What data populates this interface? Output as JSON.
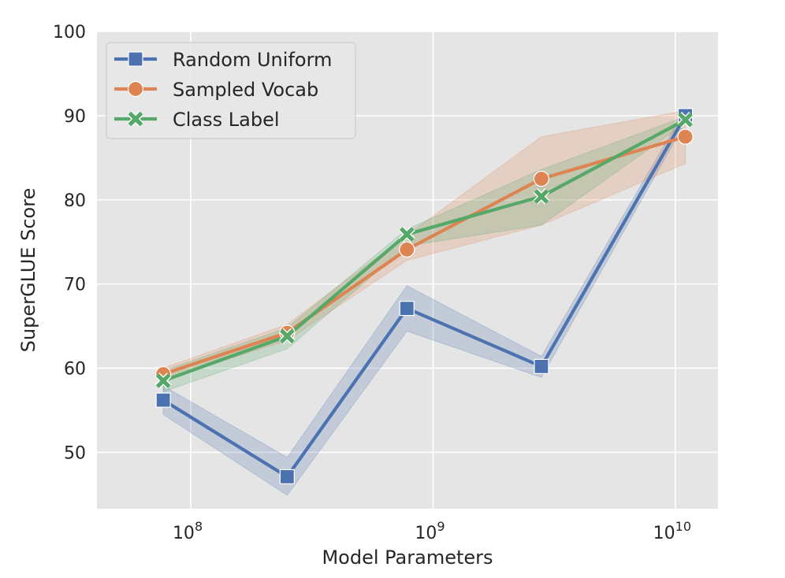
{
  "chart_data": {
    "type": "line",
    "title": "",
    "xlabel": "Model Parameters",
    "ylabel": "SuperGLUE Score",
    "x_scale": "log",
    "x": [
      77000000,
      250000000,
      780000000,
      2800000000,
      11000000000
    ],
    "xlim": [
      41000000,
      15000000000
    ],
    "ylim": [
      43.3,
      100
    ],
    "x_ticks": [
      {
        "value": 100000000,
        "base": "10",
        "exp": "8"
      },
      {
        "value": 1000000000,
        "base": "10",
        "exp": "9"
      },
      {
        "value": 10000000000,
        "base": "10",
        "exp": "10"
      }
    ],
    "y_ticks": [
      50,
      60,
      70,
      80,
      90,
      100
    ],
    "grid": true,
    "legend_position": "top-left",
    "series": [
      {
        "name": "Random Uniform",
        "color": "#4c72b0",
        "marker": "square",
        "values": [
          56.2,
          47.1,
          67.1,
          60.2,
          90.0
        ],
        "lower": [
          54.5,
          44.9,
          64.4,
          58.9,
          89.2
        ],
        "upper": [
          57.9,
          49.4,
          69.8,
          61.4,
          90.8
        ]
      },
      {
        "name": "Sampled Vocab",
        "color": "#dd8452",
        "marker": "circle",
        "values": [
          59.3,
          64.2,
          74.1,
          82.5,
          87.5
        ],
        "lower": [
          58.6,
          63.3,
          72.8,
          77.0,
          84.3
        ],
        "upper": [
          60.0,
          65.2,
          75.8,
          87.5,
          90.6
        ]
      },
      {
        "name": "Class Label",
        "color": "#55a868",
        "marker": "x",
        "values": [
          58.5,
          63.8,
          75.9,
          80.4,
          89.5
        ],
        "lower": [
          57.2,
          62.3,
          74.5,
          77.0,
          89.1
        ],
        "upper": [
          59.7,
          64.8,
          76.5,
          83.6,
          89.9
        ]
      }
    ]
  }
}
